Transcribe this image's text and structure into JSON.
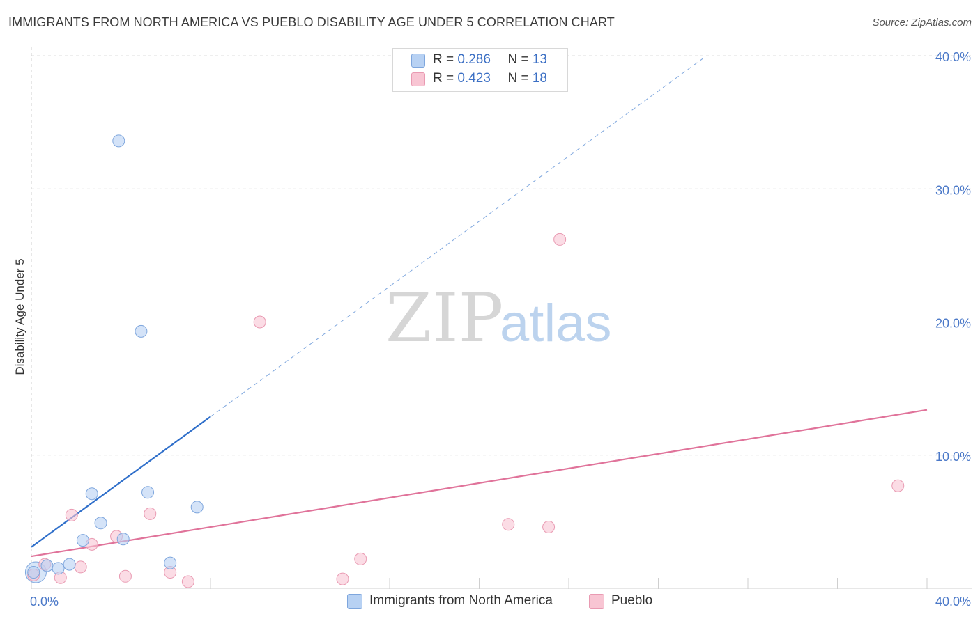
{
  "header": {
    "title": "IMMIGRANTS FROM NORTH AMERICA VS PUEBLO DISABILITY AGE UNDER 5 CORRELATION CHART",
    "source": "Source: ZipAtlas.com"
  },
  "legend": {
    "series1": {
      "r_label": "R = ",
      "r_value": "0.286",
      "n_label": "N = ",
      "n_value": "13"
    },
    "series2": {
      "r_label": "R = ",
      "r_value": "0.423",
      "n_label": "N = ",
      "n_value": "18"
    }
  },
  "watermark": {
    "zip": "ZIP",
    "atlas": "atlas"
  },
  "chart_data": {
    "type": "scatter",
    "title": "IMMIGRANTS FROM NORTH AMERICA VS PUEBLO DISABILITY AGE UNDER 5 CORRELATION CHART",
    "xlabel": "",
    "ylabel": "Disability Age Under 5",
    "xlim": [
      0,
      40
    ],
    "ylim": [
      0,
      40
    ],
    "x_tick_labels": [
      "0.0%",
      "40.0%"
    ],
    "y_ticks": [
      10,
      20,
      30,
      40
    ],
    "y_tick_labels": [
      "10.0%",
      "20.0%",
      "30.0%",
      "40.0%"
    ],
    "colors": {
      "series1_fill": "#b7d1f3",
      "series1_stroke": "#7ea6dd",
      "series1_line": "#2f6fca",
      "series2_fill": "#f8c5d3",
      "series2_stroke": "#e99ab2",
      "series2_line": "#e0739a"
    },
    "series": [
      {
        "name": "Immigrants from North America",
        "points": [
          {
            "x": 0.1,
            "y": 1.2
          },
          {
            "x": 0.7,
            "y": 1.7
          },
          {
            "x": 1.2,
            "y": 1.5
          },
          {
            "x": 1.7,
            "y": 1.8
          },
          {
            "x": 2.3,
            "y": 3.6
          },
          {
            "x": 2.7,
            "y": 7.1
          },
          {
            "x": 3.1,
            "y": 4.9
          },
          {
            "x": 3.9,
            "y": 33.6
          },
          {
            "x": 4.1,
            "y": 3.7
          },
          {
            "x": 4.9,
            "y": 19.3
          },
          {
            "x": 5.2,
            "y": 7.2
          },
          {
            "x": 6.2,
            "y": 1.9
          },
          {
            "x": 7.4,
            "y": 6.1
          }
        ],
        "trend": {
          "x0": 0,
          "y0": 3.1,
          "x_solid_end": 8.0,
          "x1": 30.0,
          "y1": 39.8
        }
      },
      {
        "name": "Pueblo",
        "points": [
          {
            "x": 0.1,
            "y": 1.0
          },
          {
            "x": 0.6,
            "y": 1.8
          },
          {
            "x": 1.3,
            "y": 0.8
          },
          {
            "x": 1.8,
            "y": 5.5
          },
          {
            "x": 2.2,
            "y": 1.6
          },
          {
            "x": 2.7,
            "y": 3.3
          },
          {
            "x": 3.8,
            "y": 3.9
          },
          {
            "x": 4.2,
            "y": 0.9
          },
          {
            "x": 5.3,
            "y": 5.6
          },
          {
            "x": 6.2,
            "y": 1.2
          },
          {
            "x": 7.0,
            "y": 0.5
          },
          {
            "x": 10.2,
            "y": 20.0
          },
          {
            "x": 13.9,
            "y": 0.7
          },
          {
            "x": 14.7,
            "y": 2.2
          },
          {
            "x": 21.3,
            "y": 4.8
          },
          {
            "x": 23.1,
            "y": 4.6
          },
          {
            "x": 23.6,
            "y": 26.2
          },
          {
            "x": 38.7,
            "y": 7.7
          }
        ],
        "trend": {
          "x0": 0,
          "y0": 2.4,
          "x1": 40.0,
          "y1": 13.4
        }
      }
    ]
  }
}
